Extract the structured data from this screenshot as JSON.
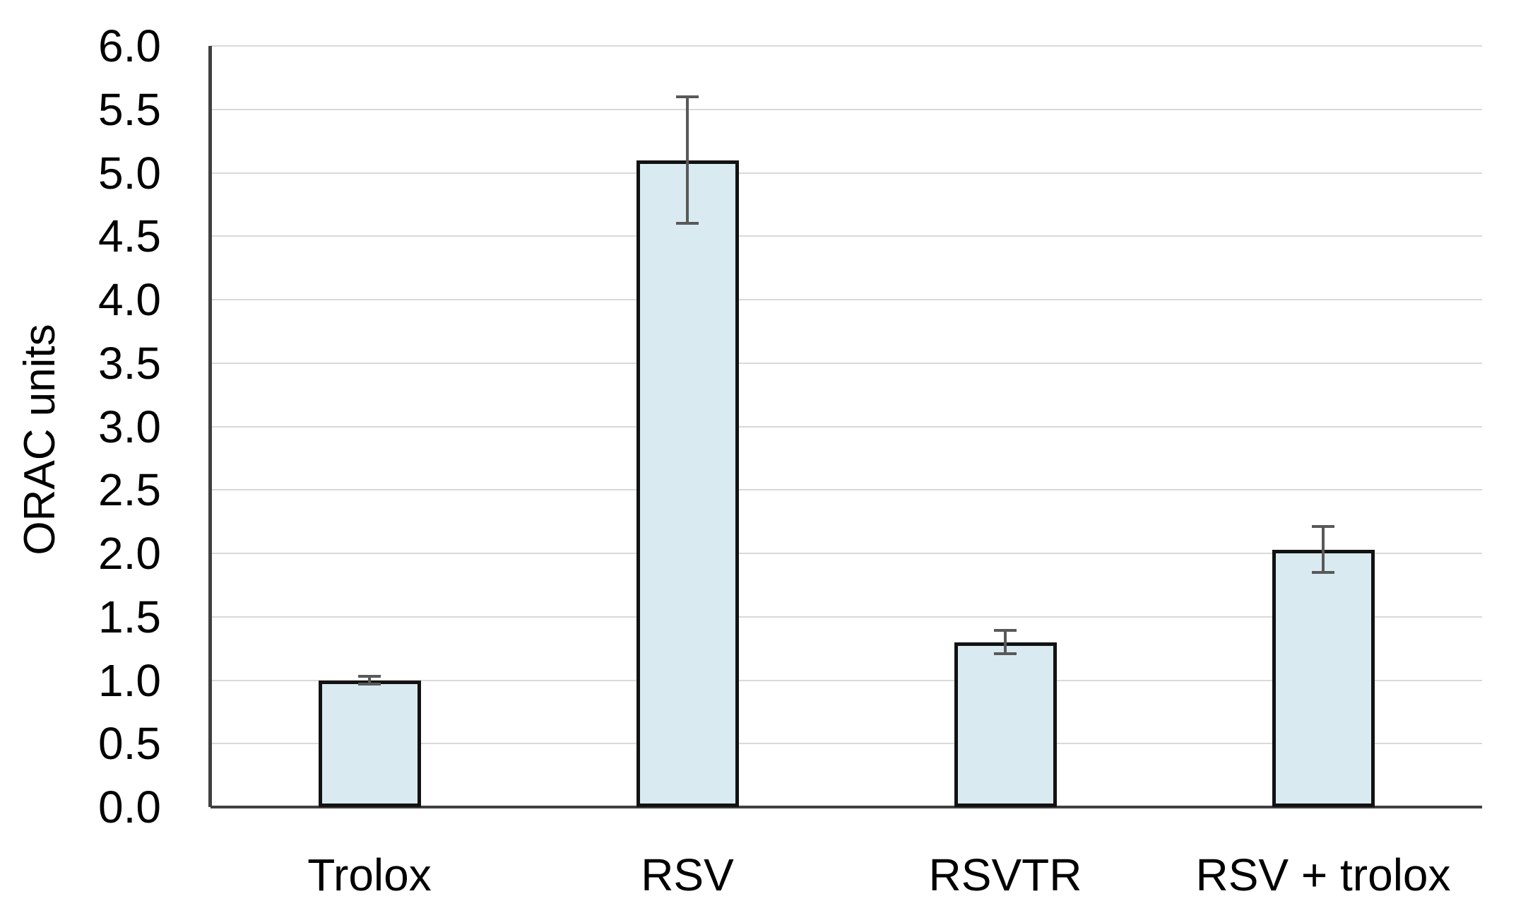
{
  "chart_data": {
    "type": "bar",
    "title": "",
    "xlabel": "",
    "ylabel": "ORAC units",
    "categories": [
      "Trolox",
      "RSV",
      "RSVTR",
      "RSV + trolox"
    ],
    "values": [
      1.0,
      5.1,
      1.3,
      2.03
    ],
    "errors": [
      0.03,
      0.5,
      0.09,
      0.18
    ],
    "ylim": [
      0.0,
      6.0
    ],
    "ytick_step": 0.5,
    "ytick_labels": [
      "0.0",
      "0.5",
      "1.0",
      "1.5",
      "2.0",
      "2.5",
      "3.0",
      "3.5",
      "4.0",
      "4.5",
      "5.0",
      "5.5",
      "6.0"
    ],
    "grid": true,
    "legend": false,
    "colors": {
      "bar_fill": "#d9eaf1",
      "bar_border": "#121212",
      "error_bar": "#595959",
      "gridline": "#d9d9d9",
      "axis": "#404040",
      "text": "#000000"
    }
  }
}
